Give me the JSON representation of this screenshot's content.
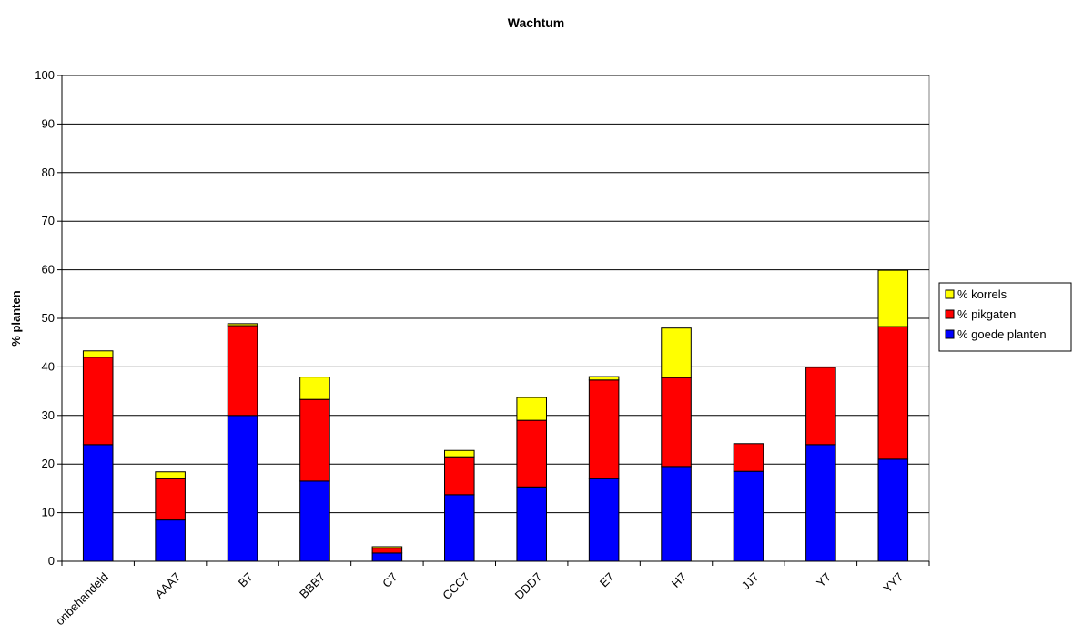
{
  "chart_data": {
    "type": "bar",
    "stacked": true,
    "title": "Wachtum",
    "xlabel": "",
    "ylabel": "% planten",
    "ylim": [
      0,
      100
    ],
    "yticks": [
      0,
      10,
      20,
      30,
      40,
      50,
      60,
      70,
      80,
      90,
      100
    ],
    "grid": true,
    "legend_position": "right",
    "categories": [
      "onbehandeld",
      "AAA7",
      "B7",
      "BBB7",
      "C7",
      "CCC7",
      "DDD7",
      "E7",
      "H7",
      "JJ7",
      "Y7",
      "YY7"
    ],
    "series": [
      {
        "name": "% goede planten",
        "color": "#0000FF",
        "values": [
          24,
          8.5,
          30,
          16.5,
          1.7,
          13.7,
          15.3,
          17,
          19.5,
          18.5,
          24,
          21
        ]
      },
      {
        "name": "% pikgaten",
        "color": "#FF0000",
        "values": [
          18,
          8.5,
          18.5,
          16.8,
          1,
          7.8,
          13.7,
          20.3,
          18.3,
          5.7,
          15.9,
          27.3
        ]
      },
      {
        "name": "% korrels",
        "color": "#FFFF00",
        "values": [
          1.3,
          1.4,
          0.4,
          4.6,
          0.3,
          1.3,
          4.7,
          0.7,
          10.2,
          0,
          0,
          11.6
        ]
      }
    ],
    "legend_order": [
      "% korrels",
      "% pikgaten",
      "% goede planten"
    ]
  }
}
